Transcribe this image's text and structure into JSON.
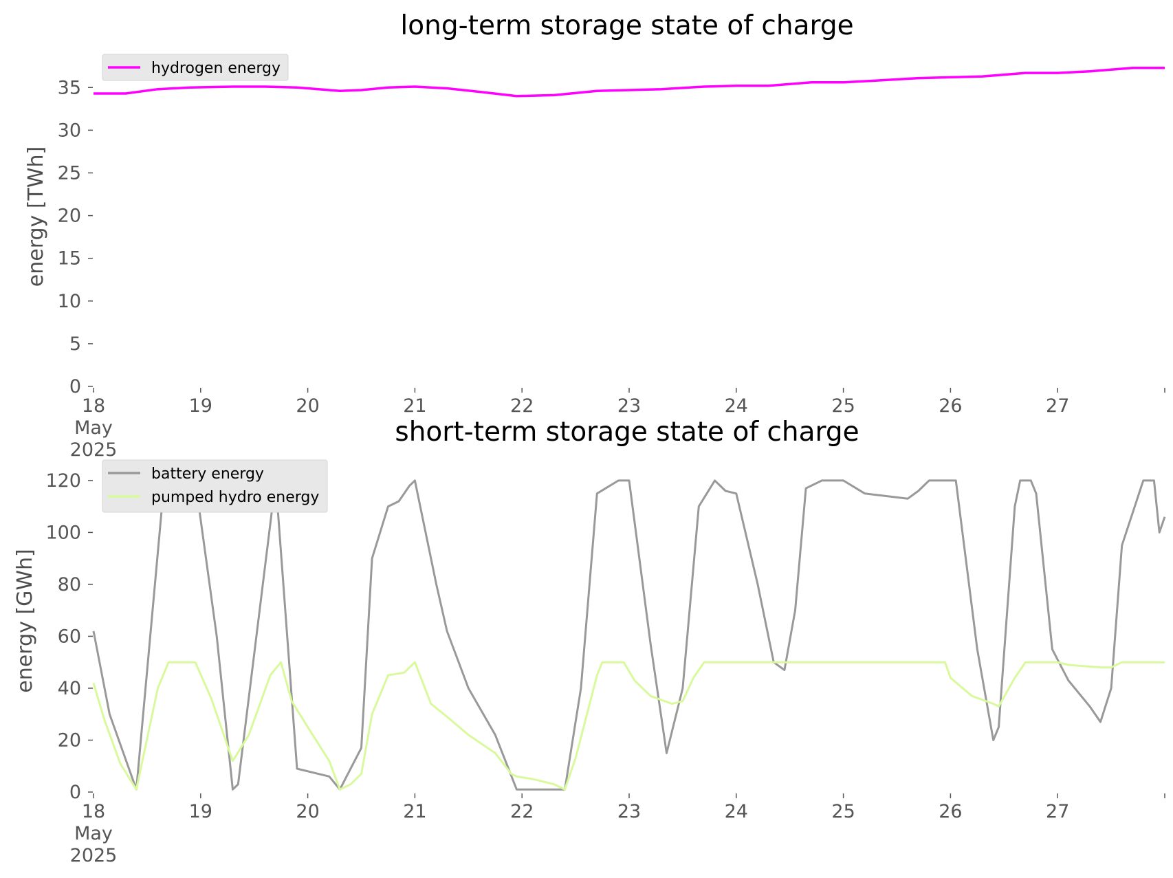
{
  "chart_data": [
    {
      "type": "line",
      "title": "long-term storage state of charge",
      "xlabel": "",
      "ylabel": "energy [TWh]",
      "x_tick_labels": [
        "18\nMay\n2025",
        "19",
        "20",
        "21",
        "22",
        "23",
        "24",
        "25",
        "26",
        "27"
      ],
      "x_ticks_days": [
        18,
        19,
        20,
        21,
        22,
        23,
        24,
        25,
        26,
        27,
        28
      ],
      "xlim_days": [
        18,
        28
      ],
      "ylim": [
        0,
        38
      ],
      "y_ticks": [
        0,
        5,
        10,
        15,
        20,
        25,
        30,
        35
      ],
      "grid": false,
      "legend_position": "top-left",
      "series": [
        {
          "name": "hydrogen energy",
          "color": "#ff00ff",
          "x_days": [
            18.0,
            18.3,
            18.6,
            18.9,
            19.3,
            19.6,
            19.9,
            20.1,
            20.3,
            20.5,
            20.75,
            21.0,
            21.3,
            21.6,
            21.95,
            22.3,
            22.7,
            23.0,
            23.3,
            23.7,
            24.0,
            24.3,
            24.7,
            25.0,
            25.3,
            25.7,
            26.0,
            26.3,
            26.7,
            27.0,
            27.3,
            27.7,
            28.0
          ],
          "values": [
            34.3,
            34.3,
            34.8,
            35.0,
            35.1,
            35.1,
            35.0,
            34.8,
            34.6,
            34.7,
            35.0,
            35.1,
            34.9,
            34.5,
            34.0,
            34.1,
            34.6,
            34.7,
            34.8,
            35.1,
            35.2,
            35.2,
            35.6,
            35.6,
            35.8,
            36.1,
            36.2,
            36.3,
            36.7,
            36.7,
            36.9,
            37.3,
            37.3
          ]
        }
      ]
    },
    {
      "type": "line",
      "title": "short-term storage state of charge",
      "xlabel": "",
      "ylabel": "energy [GWh]",
      "x_tick_labels": [
        "18\nMay\n2025",
        "19",
        "20",
        "21",
        "22",
        "23",
        "24",
        "25",
        "26",
        "27"
      ],
      "x_ticks_days": [
        18,
        19,
        20,
        21,
        22,
        23,
        24,
        25,
        26,
        27,
        28
      ],
      "xlim_days": [
        18,
        28
      ],
      "ylim": [
        0,
        125
      ],
      "y_ticks": [
        0,
        20,
        40,
        60,
        80,
        100,
        120
      ],
      "grid": false,
      "legend_position": "top-left",
      "series": [
        {
          "name": "battery energy",
          "color": "#999999",
          "x_days": [
            18.0,
            18.15,
            18.4,
            18.65,
            18.75,
            18.95,
            19.15,
            19.3,
            19.35,
            19.7,
            19.9,
            20.1,
            20.2,
            20.3,
            20.5,
            20.6,
            20.75,
            20.85,
            20.95,
            21.0,
            21.2,
            21.3,
            21.5,
            21.75,
            21.95,
            22.15,
            22.4,
            22.55,
            22.7,
            22.9,
            23.0,
            23.2,
            23.35,
            23.5,
            23.65,
            23.8,
            23.9,
            24.0,
            24.2,
            24.35,
            24.45,
            24.55,
            24.65,
            24.8,
            25.0,
            25.2,
            25.4,
            25.6,
            25.7,
            25.8,
            25.95,
            26.05,
            26.25,
            26.4,
            26.45,
            26.6,
            26.65,
            26.75,
            26.8,
            26.95,
            27.1,
            27.3,
            27.4,
            27.5,
            27.6,
            27.8,
            27.9,
            27.95,
            28.0
          ],
          "values": [
            62,
            30,
            1,
            115,
            120,
            120,
            60,
            1,
            3,
            120,
            9,
            7,
            6,
            1,
            17,
            90,
            110,
            112,
            118,
            120,
            80,
            62,
            40,
            22,
            1,
            1,
            1,
            40,
            115,
            120,
            120,
            57,
            15,
            40,
            110,
            120,
            116,
            115,
            80,
            50,
            47,
            70,
            117,
            120,
            120,
            115,
            114,
            113,
            116,
            120,
            120,
            120,
            55,
            20,
            25,
            110,
            120,
            120,
            115,
            55,
            43,
            33,
            27,
            40,
            95,
            120,
            120,
            100,
            106
          ]
        },
        {
          "name": "pumped hydro energy",
          "color": "#d9f99d",
          "x_days": [
            18.0,
            18.1,
            18.25,
            18.4,
            18.6,
            18.7,
            18.95,
            19.1,
            19.3,
            19.45,
            19.65,
            19.75,
            19.85,
            20.0,
            20.2,
            20.3,
            20.4,
            20.5,
            20.6,
            20.75,
            20.9,
            21.0,
            21.15,
            21.3,
            21.5,
            21.75,
            21.9,
            21.95,
            22.1,
            22.3,
            22.4,
            22.5,
            22.7,
            22.75,
            22.95,
            23.05,
            23.2,
            23.4,
            23.5,
            23.6,
            23.7,
            23.9,
            24.0,
            24.5,
            25.0,
            25.5,
            25.95,
            26.0,
            26.2,
            26.4,
            26.45,
            26.6,
            26.7,
            26.9,
            27.0,
            27.1,
            27.4,
            27.5,
            27.6,
            27.8,
            28.0
          ],
          "values": [
            42,
            28,
            11,
            1,
            40,
            50,
            50,
            36,
            12,
            22,
            45,
            50,
            35,
            25,
            12,
            1,
            3,
            7,
            30,
            45,
            46,
            50,
            34,
            29,
            22,
            15,
            7,
            6,
            5,
            3,
            1,
            13,
            45,
            50,
            50,
            43,
            37,
            34,
            35,
            44,
            50,
            50,
            50,
            50,
            50,
            50,
            50,
            44,
            37,
            34,
            33,
            44,
            50,
            50,
            50,
            49,
            48,
            48,
            50,
            50,
            50
          ]
        }
      ]
    }
  ]
}
